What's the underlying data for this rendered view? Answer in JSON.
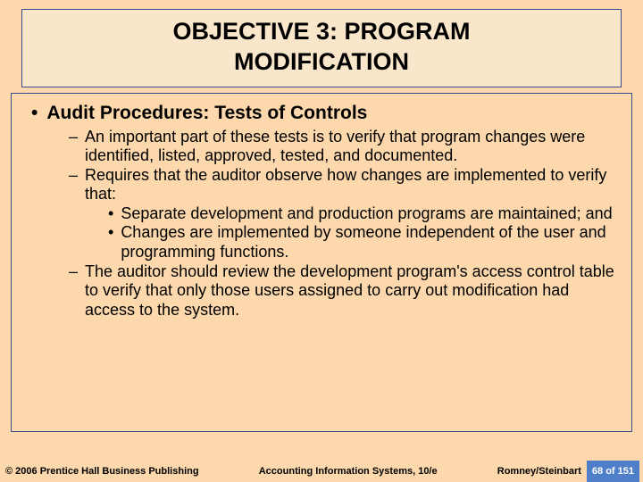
{
  "colors": {
    "slide_bg": "#fcd8ac",
    "title_bg": "#fae6ca",
    "border": "#3b4a8a",
    "text": "#000000",
    "footer_bg": "#fcd8ac",
    "pagenum_bg": "#4f7fc8",
    "pagenum_text": "#ffffff"
  },
  "fonts": {
    "title_size": 27,
    "l1_size": 21,
    "l2_size": 18,
    "l3_size": 18,
    "footer_size": 11
  },
  "title": {
    "line1": "OBJECTIVE 3:  PROGRAM",
    "line2": "MODIFICATION"
  },
  "content": {
    "l1": "Audit Procedures:  Tests of Controls",
    "items": [
      "An important part of these tests is to verify that program changes were identified, listed, approved, tested, and documented.",
      "Requires that the auditor observe how changes are implemented to verify that:",
      "Separate development and production programs are maintained; and",
      "Changes are implemented by someone independent of the user and programming functions.",
      "The auditor should review the development program's access control table to verify that only those users assigned to carry out modification had access to the system."
    ]
  },
  "footer": {
    "left": "© 2006 Prentice Hall Business Publishing",
    "center": "Accounting Information Systems, 10/e",
    "right": "Romney/Steinbart",
    "page": "68 of 151"
  }
}
